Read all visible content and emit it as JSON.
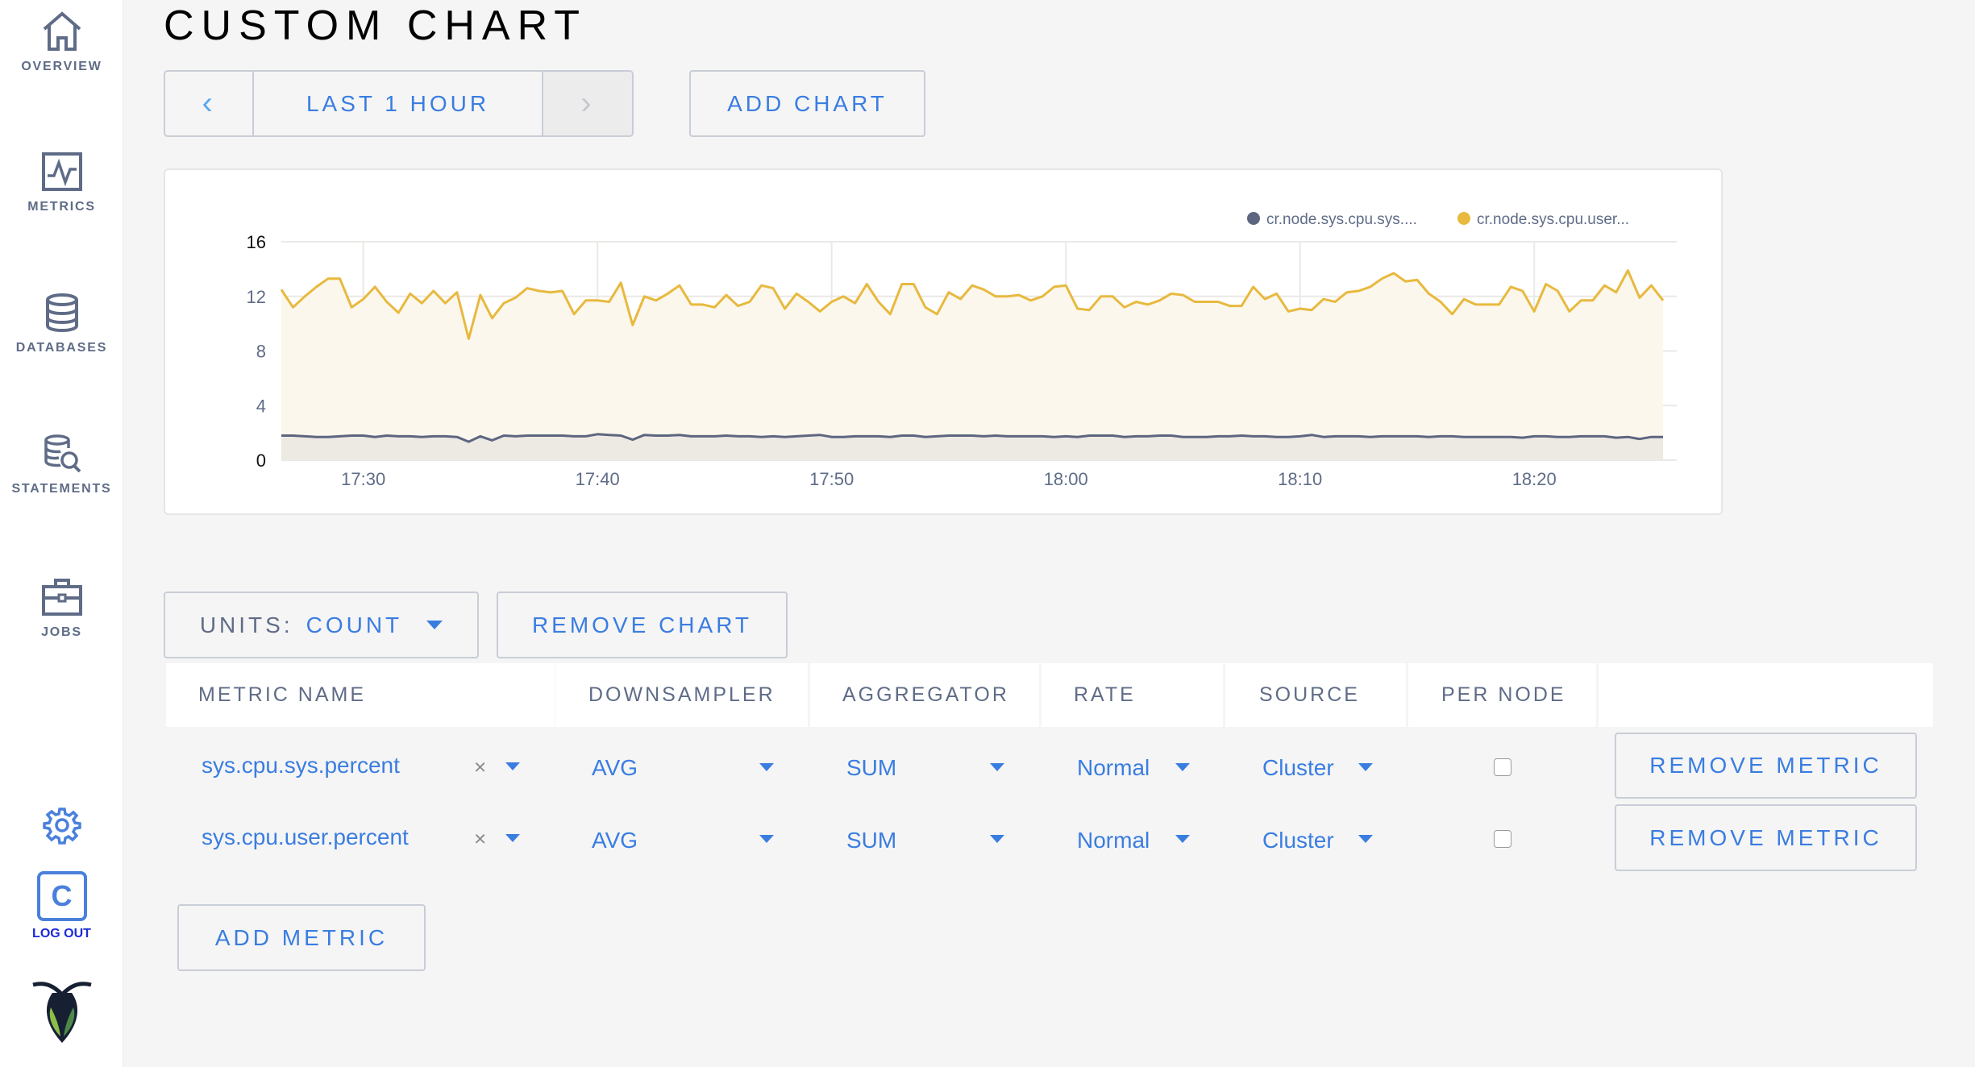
{
  "sidebar": {
    "items": [
      {
        "label": "OVERVIEW",
        "icon": "home-icon"
      },
      {
        "label": "METRICS",
        "icon": "metrics-icon"
      },
      {
        "label": "DATABASES",
        "icon": "database-icon"
      },
      {
        "label": "STATEMENTS",
        "icon": "statements-icon"
      },
      {
        "label": "JOBS",
        "icon": "briefcase-icon"
      }
    ],
    "settings_icon": "gear-icon",
    "logout": {
      "avatar_letter": "C",
      "label": "LOG OUT"
    },
    "logo": "cockroach-logo"
  },
  "page": {
    "title": "CUSTOM CHART"
  },
  "time_nav": {
    "prev": "‹",
    "label": "LAST 1 HOUR",
    "next": "›"
  },
  "add_chart_label": "ADD CHART",
  "units": {
    "label": "UNITS:",
    "value": "COUNT"
  },
  "remove_chart_label": "REMOVE CHART",
  "table": {
    "headers": [
      "METRIC NAME",
      "DOWNSAMPLER",
      "AGGREGATOR",
      "RATE",
      "SOURCE",
      "PER NODE"
    ],
    "rows": [
      {
        "metric": "sys.cpu.sys.percent",
        "downsampler": "AVG",
        "aggregator": "SUM",
        "rate": "Normal",
        "source": "Cluster",
        "per_node": false,
        "remove_label": "REMOVE METRIC"
      },
      {
        "metric": "sys.cpu.user.percent",
        "downsampler": "AVG",
        "aggregator": "SUM",
        "rate": "Normal",
        "source": "Cluster",
        "per_node": false,
        "remove_label": "REMOVE METRIC"
      }
    ],
    "clear_glyph": "×"
  },
  "add_metric_label": "ADD METRIC",
  "colors": {
    "accent": "#3a7de1",
    "sys": "#5d6680",
    "user": "#e8b93f"
  },
  "chart_data": {
    "type": "area",
    "ylim": [
      0,
      16
    ],
    "yticks": [
      "0",
      "4",
      "8",
      "12",
      "16"
    ],
    "xticks": [
      "17:30",
      "17:40",
      "17:50",
      "18:00",
      "18:10",
      "18:20"
    ],
    "xlim": [
      "17:26:30",
      "18:25:30"
    ],
    "grid": true,
    "legend_position": "top-right",
    "x": [
      "17:26:30",
      "17:27:00",
      "17:27:30",
      "17:28:00",
      "17:28:30",
      "17:29:00",
      "17:29:30",
      "17:30:00",
      "17:30:30",
      "17:31:00",
      "17:31:30",
      "17:32:00",
      "17:32:30",
      "17:33:00",
      "17:33:30",
      "17:34:00",
      "17:34:30",
      "17:35:00",
      "17:35:30",
      "17:36:00",
      "17:36:30",
      "17:37:00",
      "17:37:30",
      "17:38:00",
      "17:38:30",
      "17:39:00",
      "17:39:30",
      "17:40:00",
      "17:40:30",
      "17:41:00",
      "17:41:30",
      "17:42:00",
      "17:42:30",
      "17:43:00",
      "17:43:30",
      "17:44:00",
      "17:44:30",
      "17:45:00",
      "17:45:30",
      "17:46:00",
      "17:46:30",
      "17:47:00",
      "17:47:30",
      "17:48:00",
      "17:48:30",
      "17:49:00",
      "17:49:30",
      "17:50:00",
      "17:50:30",
      "17:51:00",
      "17:51:30",
      "17:52:00",
      "17:52:30",
      "17:53:00",
      "17:53:30",
      "17:54:00",
      "17:54:30",
      "17:55:00",
      "17:55:30",
      "17:56:00",
      "17:56:30",
      "17:57:00",
      "17:57:30",
      "17:58:00",
      "17:58:30",
      "17:59:00",
      "17:59:30",
      "18:00:00",
      "18:00:30",
      "18:01:00",
      "18:01:30",
      "18:02:00",
      "18:02:30",
      "18:03:00",
      "18:03:30",
      "18:04:00",
      "18:04:30",
      "18:05:00",
      "18:05:30",
      "18:06:00",
      "18:06:30",
      "18:07:00",
      "18:07:30",
      "18:08:00",
      "18:08:30",
      "18:09:00",
      "18:09:30",
      "18:10:00",
      "18:10:30",
      "18:11:00",
      "18:11:30",
      "18:12:00",
      "18:12:30",
      "18:13:00",
      "18:13:30",
      "18:14:00",
      "18:14:30",
      "18:15:00",
      "18:15:30",
      "18:16:00",
      "18:16:30",
      "18:17:00",
      "18:17:30",
      "18:18:00",
      "18:18:30",
      "18:19:00",
      "18:19:30",
      "18:20:00",
      "18:20:30",
      "18:21:00",
      "18:21:30",
      "18:22:00",
      "18:22:30",
      "18:23:00",
      "18:23:30",
      "18:24:00",
      "18:24:30",
      "18:25:00",
      "18:25:30"
    ],
    "series": [
      {
        "name": "cr.node.sys.cpu.sys....",
        "color": "#5d6680",
        "values": [
          1.8,
          1.8,
          1.75,
          1.7,
          1.7,
          1.75,
          1.8,
          1.8,
          1.7,
          1.8,
          1.75,
          1.75,
          1.7,
          1.75,
          1.75,
          1.7,
          1.35,
          1.75,
          1.45,
          1.8,
          1.75,
          1.8,
          1.8,
          1.8,
          1.8,
          1.75,
          1.75,
          1.9,
          1.85,
          1.8,
          1.5,
          1.85,
          1.8,
          1.8,
          1.85,
          1.75,
          1.75,
          1.75,
          1.8,
          1.75,
          1.75,
          1.7,
          1.75,
          1.7,
          1.75,
          1.8,
          1.85,
          1.7,
          1.7,
          1.75,
          1.75,
          1.75,
          1.7,
          1.8,
          1.8,
          1.7,
          1.75,
          1.8,
          1.8,
          1.8,
          1.75,
          1.8,
          1.75,
          1.75,
          1.75,
          1.75,
          1.7,
          1.75,
          1.7,
          1.8,
          1.8,
          1.8,
          1.7,
          1.75,
          1.75,
          1.8,
          1.8,
          1.7,
          1.7,
          1.7,
          1.75,
          1.75,
          1.8,
          1.75,
          1.75,
          1.7,
          1.7,
          1.75,
          1.85,
          1.7,
          1.75,
          1.75,
          1.75,
          1.7,
          1.75,
          1.75,
          1.75,
          1.75,
          1.7,
          1.75,
          1.75,
          1.7,
          1.7,
          1.7,
          1.7,
          1.7,
          1.65,
          1.75,
          1.75,
          1.7,
          1.7,
          1.75,
          1.75,
          1.75,
          1.65,
          1.7,
          1.55,
          1.7,
          1.7
        ]
      },
      {
        "name": "cr.node.sys.cpu.user...",
        "color": "#e8b93f",
        "values": [
          12.5,
          11.2,
          12.0,
          12.7,
          13.3,
          13.3,
          11.2,
          11.8,
          12.7,
          11.6,
          10.8,
          12.2,
          11.5,
          12.4,
          11.5,
          12.3,
          8.9,
          12.1,
          10.4,
          11.5,
          11.9,
          12.6,
          12.4,
          12.3,
          12.4,
          10.7,
          11.7,
          11.7,
          11.6,
          13.0,
          9.9,
          12.0,
          11.7,
          12.2,
          12.8,
          11.4,
          11.4,
          11.2,
          12.1,
          11.3,
          11.6,
          12.8,
          12.6,
          11.1,
          12.2,
          11.6,
          10.9,
          11.6,
          12.0,
          11.5,
          12.9,
          11.6,
          10.7,
          12.9,
          12.9,
          11.2,
          10.7,
          12.3,
          11.8,
          12.8,
          12.5,
          12.0,
          12.0,
          12.1,
          11.7,
          12.0,
          12.7,
          12.8,
          11.1,
          11.0,
          12.0,
          12.0,
          11.2,
          11.6,
          11.4,
          11.7,
          12.2,
          12.1,
          11.6,
          11.6,
          11.6,
          11.3,
          11.3,
          12.7,
          11.8,
          12.2,
          10.9,
          11.1,
          11.0,
          11.8,
          11.6,
          12.3,
          12.4,
          12.7,
          13.3,
          13.7,
          13.1,
          13.2,
          12.2,
          11.6,
          10.7,
          11.8,
          11.4,
          11.4,
          11.4,
          12.7,
          12.4,
          10.9,
          12.9,
          12.4,
          10.9,
          11.7,
          11.7,
          12.8,
          12.3,
          13.9,
          11.9,
          12.8,
          11.7
        ]
      }
    ]
  }
}
